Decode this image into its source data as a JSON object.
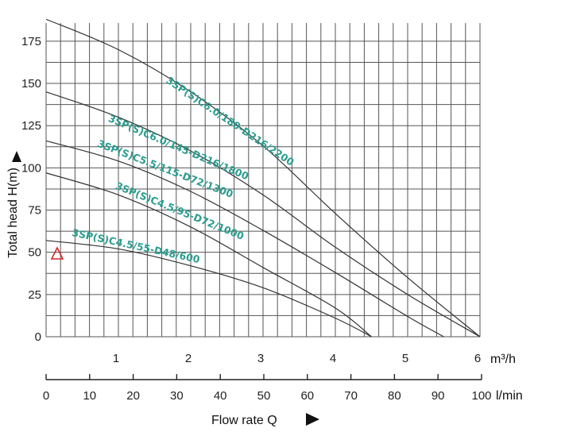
{
  "chart_data": {
    "type": "line",
    "xlabel": "Flow rate Q",
    "ylabel": "Total head H(m)",
    "x_unit_primary": "m³/h",
    "x_unit_secondary": "l/min",
    "xlim": [
      0,
      6
    ],
    "ylim": [
      0,
      190
    ],
    "x_ticks": [
      "1",
      "2",
      "3",
      "4",
      "5",
      "6"
    ],
    "x_ticks_secondary": [
      "0",
      "10",
      "20",
      "30",
      "40",
      "50",
      "60",
      "70",
      "80",
      "90",
      "100"
    ],
    "y_ticks": [
      "0",
      "25",
      "50",
      "75",
      "100",
      "125",
      "150",
      "175"
    ],
    "grid": true,
    "colors": {
      "curve": "#333333",
      "label": "#2a9d8f",
      "grid": "#555555",
      "marker": "#d62728"
    },
    "series": [
      {
        "name": "3SP(S)C6.0/180-D216/2200",
        "x": [
          0,
          1,
          2,
          3,
          4,
          5,
          6
        ],
        "y": [
          188,
          170,
          145,
          113,
          73,
          35,
          0
        ]
      },
      {
        "name": "3SP(S)C6.0/145-D216/1800",
        "x": [
          0,
          1,
          2,
          3,
          4,
          5,
          6
        ],
        "y": [
          145,
          130,
          110,
          84,
          53,
          25,
          0
        ]
      },
      {
        "name": "3SP(S)C5.5/115-D72/1300",
        "x": [
          0,
          1,
          2,
          3,
          4,
          5,
          5.5
        ],
        "y": [
          116,
          104,
          86,
          63,
          38,
          12,
          0
        ]
      },
      {
        "name": "3SP(S)C4.5/95-D72/1000",
        "x": [
          0,
          1,
          2,
          3,
          4,
          4.5
        ],
        "y": [
          97,
          84,
          65,
          41,
          17,
          0
        ]
      },
      {
        "name": "3SP(S)C4.5/55-D48/600",
        "x": [
          0,
          1,
          2,
          3,
          4,
          4.5
        ],
        "y": [
          57,
          52,
          42,
          29,
          11,
          0
        ]
      }
    ]
  }
}
